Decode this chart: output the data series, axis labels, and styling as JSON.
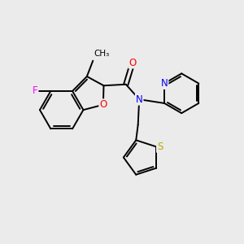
{
  "background_color": "#ebebeb",
  "bond_color": "#000000",
  "figsize": [
    3.0,
    3.0
  ],
  "dpi": 100,
  "atom_colors": {
    "F": "#ff00ff",
    "O": "#ff0000",
    "N": "#0000ff",
    "S": "#bbaa00",
    "C": "#000000"
  },
  "font_size": 9,
  "font_size_small": 8.5
}
